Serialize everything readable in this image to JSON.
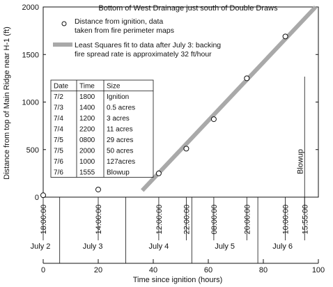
{
  "chart_data": {
    "type": "scatter",
    "title": "Bottom of West Drainage just south of Double Draws",
    "xlabel": "Time since ignition (hours)",
    "ylabel": "Distance from top of Main Ridge near H-1 (ft)",
    "xlim": [
      0,
      100
    ],
    "ylim": [
      0,
      2000
    ],
    "x_ticks": [
      0,
      20,
      40,
      60,
      80,
      100
    ],
    "y_ticks": [
      0,
      500,
      1000,
      1500,
      2000
    ],
    "grid": false,
    "series": [
      {
        "name": "Distance from ignition, data taken from fire perimeter maps",
        "type": "scatter",
        "points": [
          {
            "x": 0,
            "y": 20
          },
          {
            "x": 20,
            "y": 80
          },
          {
            "x": 42,
            "y": 250
          },
          {
            "x": 52,
            "y": 510
          },
          {
            "x": 62,
            "y": 820
          },
          {
            "x": 74,
            "y": 1250
          },
          {
            "x": 88,
            "y": 1690
          }
        ]
      },
      {
        "name": "Least Squares fit to data after July 3: backing fire spread rate is approximately 32 ft/hour",
        "type": "line",
        "points": [
          {
            "x": 36,
            "y": 70
          },
          {
            "x": 99,
            "y": 2000
          }
        ]
      }
    ],
    "legend": {
      "placement": "top-right",
      "entries": [
        "Distance from ignition, data taken from fire perimeter maps",
        "Least Squares fit to data after July 3: backing fire spread rate is approximately 32 ft/hour"
      ]
    },
    "annotations": {
      "blowup_label": "Blowup",
      "blowup_x": 95,
      "date_time_labels": [
        {
          "x": 0,
          "text": "18:00:00"
        },
        {
          "x": 20,
          "text": "14:00:00"
        },
        {
          "x": 42,
          "text": "12:00:00"
        },
        {
          "x": 52,
          "text": "22:00:00"
        },
        {
          "x": 62,
          "text": "08:00:00"
        },
        {
          "x": 74,
          "text": "20:00:00"
        },
        {
          "x": 88,
          "text": "10:00:00"
        },
        {
          "x": 95,
          "text": "15:55:00"
        }
      ],
      "day_boundaries": [
        6,
        30,
        54,
        78
      ],
      "day_labels": [
        {
          "x": -1,
          "text": "July 2"
        },
        {
          "x": 18,
          "text": "July 3"
        },
        {
          "x": 42,
          "text": "July 4"
        },
        {
          "x": 66,
          "text": "July 5"
        },
        {
          "x": 87,
          "text": "July 6"
        }
      ]
    },
    "table": {
      "headers": [
        "Date",
        "Time",
        "Size"
      ],
      "rows": [
        [
          "7/2",
          "1800",
          "Ignition"
        ],
        [
          "7/3",
          "1400",
          "0.5 acres"
        ],
        [
          "7/4",
          "1200",
          "3 acres"
        ],
        [
          "7/4",
          "2200",
          "11 acres"
        ],
        [
          "7/5",
          "0800",
          "29 acres"
        ],
        [
          "7/5",
          "2000",
          "50 acres"
        ],
        [
          "7/6",
          "1000",
          "127acres"
        ],
        [
          "7/6",
          "1555",
          "Blowup"
        ]
      ]
    }
  }
}
